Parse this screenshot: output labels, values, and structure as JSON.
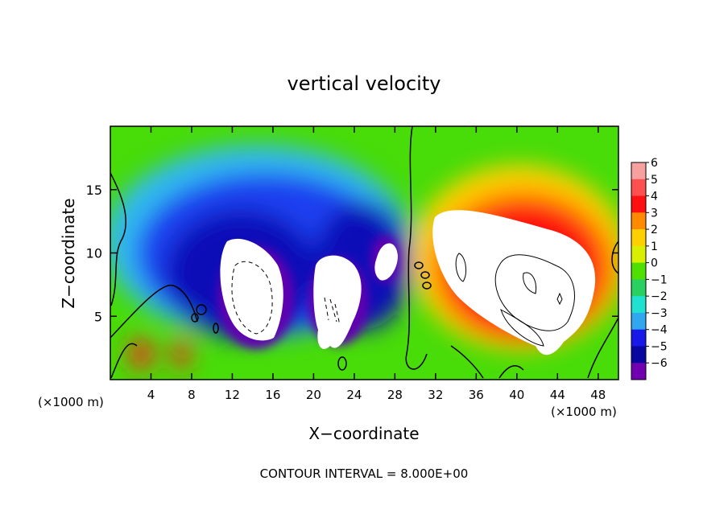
{
  "chart_data": {
    "type": "heatmap",
    "title": "vertical velocity",
    "xlabel": "X−coordinate",
    "ylabel": "Z−coordinate",
    "x_unit_left": "(×1000 m)",
    "x_unit_right": "(×1000 m)",
    "footer": "CONTOUR INTERVAL = 8.000E+00",
    "xlim": [
      0,
      50
    ],
    "ylim": [
      0,
      20
    ],
    "x_ticks": [
      "4",
      "8",
      "12",
      "16",
      "20",
      "24",
      "28",
      "32",
      "36",
      "40",
      "44",
      "48"
    ],
    "y_ticks": [
      "5",
      "10",
      "15"
    ],
    "colorbar": {
      "labels": [
        "6",
        "5",
        "4",
        "3",
        "2",
        "1",
        "0",
        "−1",
        "−2",
        "−3",
        "−4",
        "−5",
        "−6"
      ],
      "colors": [
        "#f6a0a0",
        "#ff5050",
        "#ff1010",
        "#ff8a00",
        "#ffd000",
        "#d8f000",
        "#50e000",
        "#28d060",
        "#20e0d0",
        "#30a8f0",
        "#1818e8",
        "#0808a0",
        "#7000b0"
      ],
      "range": [
        -6,
        6
      ]
    },
    "features": [
      {
        "kind": "downdraft-core",
        "x": 14,
        "z": 6.5,
        "value": -8
      },
      {
        "kind": "downdraft-core",
        "x": 22,
        "z": 5.5,
        "value": -8
      },
      {
        "kind": "downdraft-core",
        "x": 27.5,
        "z": 9.5,
        "value": -8
      },
      {
        "kind": "updraft-core",
        "x": 41,
        "z": 6.5,
        "value": 8
      },
      {
        "kind": "surface-updraft",
        "x": 3,
        "z": 2,
        "value": 5
      },
      {
        "kind": "surface-updraft",
        "x": 7,
        "z": 2,
        "value": 5
      }
    ]
  }
}
